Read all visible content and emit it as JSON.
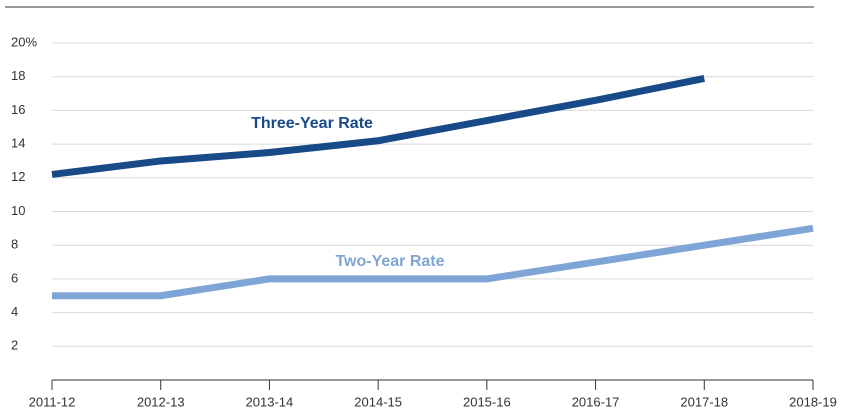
{
  "chart_data": {
    "type": "line",
    "categories": [
      "2011-12",
      "2012-13",
      "2013-14",
      "2014-15",
      "2015-16",
      "2016-17",
      "2017-18",
      "2018-19"
    ],
    "series": [
      {
        "name": "Three-Year Rate",
        "color": "#174a87",
        "values": [
          12.2,
          13.0,
          13.5,
          14.2,
          15.4,
          16.6,
          17.9,
          null
        ]
      },
      {
        "name": "Two-Year Rate",
        "color": "#7fa5d6",
        "values": [
          5,
          5,
          6,
          6,
          6,
          7,
          8,
          9
        ]
      }
    ],
    "ylim": [
      0,
      20
    ],
    "yticks": [
      2,
      4,
      6,
      8,
      10,
      12,
      14,
      16,
      18,
      {
        "value": 20,
        "label": "20%"
      }
    ],
    "grid": true
  }
}
